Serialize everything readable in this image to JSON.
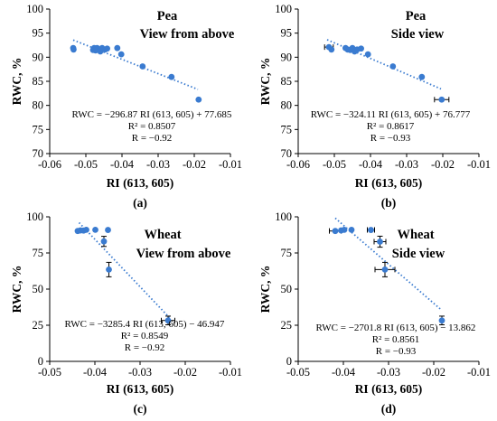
{
  "chart_data": [
    {
      "type": "scatter",
      "panel_label": "(a)",
      "title": [
        "Pea",
        "View from above"
      ],
      "xlabel": "RI (613, 605)",
      "ylabel": "RWC, %",
      "xlim": [
        -0.06,
        -0.01
      ],
      "ylim": [
        70,
        100
      ],
      "xticks": [
        -0.06,
        -0.05,
        -0.04,
        -0.03,
        -0.02,
        -0.01
      ],
      "yticks": [
        70,
        75,
        80,
        85,
        90,
        95,
        100
      ],
      "xtick_labels": [
        "-0.06",
        "-0.05",
        "-0.04",
        "-0.03",
        "-0.02",
        "-0.01"
      ],
      "ytick_labels": [
        "70",
        "75",
        "80",
        "85",
        "90",
        "95",
        "100"
      ],
      "grid": false,
      "points": [
        {
          "x": -0.0535,
          "y": 91.9
        },
        {
          "x": -0.0534,
          "y": 91.6
        },
        {
          "x": -0.048,
          "y": 91.5
        },
        {
          "x": -0.0477,
          "y": 91.9
        },
        {
          "x": -0.0473,
          "y": 91.4
        },
        {
          "x": -0.0469,
          "y": 91.9
        },
        {
          "x": -0.046,
          "y": 91.2
        },
        {
          "x": -0.0455,
          "y": 91.9
        },
        {
          "x": -0.0447,
          "y": 91.6
        },
        {
          "x": -0.0441,
          "y": 91.8
        },
        {
          "x": -0.0413,
          "y": 91.9
        },
        {
          "x": -0.0402,
          "y": 90.6
        },
        {
          "x": -0.0343,
          "y": 88.1
        },
        {
          "x": -0.0263,
          "y": 85.9
        },
        {
          "x": -0.0188,
          "y": 81.2
        }
      ],
      "trendline": {
        "x": [
          -0.0535,
          -0.019
        ]
      },
      "equation": [
        "RWC = −296.87 RI (613, 605) + 77.685",
        "R² = 0.8507",
        "R = −0.92"
      ]
    },
    {
      "type": "scatter",
      "panel_label": "(b)",
      "title": [
        "Pea",
        "Side view"
      ],
      "xlabel": "RI (613, 605)",
      "ylabel": "RWC, %",
      "xlim": [
        -0.06,
        -0.01
      ],
      "ylim": [
        70,
        100
      ],
      "xticks": [
        -0.06,
        -0.05,
        -0.04,
        -0.03,
        -0.02,
        -0.01
      ],
      "yticks": [
        70,
        75,
        80,
        85,
        90,
        95,
        100
      ],
      "xtick_labels": [
        "-0.06",
        "-0.05",
        "-0.04",
        "-0.03",
        "-0.02",
        "-0.01"
      ],
      "ytick_labels": [
        "70",
        "75",
        "80",
        "85",
        "90",
        "95",
        "100"
      ],
      "grid": false,
      "points": [
        {
          "x": -0.0515,
          "y": 92.1,
          "xerr": 0.0012
        },
        {
          "x": -0.0508,
          "y": 91.6
        },
        {
          "x": -0.0469,
          "y": 91.9
        },
        {
          "x": -0.0463,
          "y": 91.6
        },
        {
          "x": -0.0456,
          "y": 91.5
        },
        {
          "x": -0.045,
          "y": 91.9
        },
        {
          "x": -0.0444,
          "y": 91.2
        },
        {
          "x": -0.0437,
          "y": 91.6
        },
        {
          "x": -0.0426,
          "y": 91.8
        },
        {
          "x": -0.0407,
          "y": 90.6
        },
        {
          "x": -0.0338,
          "y": 88.1
        },
        {
          "x": -0.0258,
          "y": 85.9
        },
        {
          "x": -0.0203,
          "y": 81.2,
          "xerr": 0.002
        }
      ],
      "trendline": {
        "x": [
          -0.052,
          -0.0205
        ]
      },
      "equation": [
        "RWC = −324.11 RI (613, 605) + 76.777",
        "R² = 0.8617",
        "R = −0.93"
      ]
    },
    {
      "type": "scatter",
      "panel_label": "(c)",
      "title": [
        "Wheat",
        "View from above"
      ],
      "xlabel": "RI (613, 605)",
      "ylabel": "RWC, %",
      "xlim": [
        -0.05,
        -0.01
      ],
      "ylim": [
        0,
        100
      ],
      "xticks": [
        -0.05,
        -0.04,
        -0.03,
        -0.02,
        -0.01
      ],
      "yticks": [
        0,
        25,
        50,
        75,
        100
      ],
      "xtick_labels": [
        "-0.05",
        "-0.04",
        "-0.03",
        "-0.02",
        "-0.01"
      ],
      "ytick_labels": [
        "0",
        "25",
        "50",
        "75",
        "100"
      ],
      "grid": false,
      "points": [
        {
          "x": -0.0438,
          "y": 90.2
        },
        {
          "x": -0.0432,
          "y": 90.6
        },
        {
          "x": -0.0425,
          "y": 90.5
        },
        {
          "x": -0.0419,
          "y": 91.0
        },
        {
          "x": -0.0399,
          "y": 91.0
        },
        {
          "x": -0.038,
          "y": 83.0,
          "yerr": 3.5
        },
        {
          "x": -0.0371,
          "y": 90.9
        },
        {
          "x": -0.0369,
          "y": 63.5,
          "yerr": 5.0
        },
        {
          "x": -0.0238,
          "y": 28.3,
          "xerr": 0.0015,
          "yerr": 3.0
        }
      ],
      "trendline": {
        "x": [
          -0.0435,
          -0.0235
        ]
      },
      "equation": [
        "RWC = −3285.4 RI (613, 605) − 46.947",
        "R² = 0.8549",
        "R = −0.92"
      ]
    },
    {
      "type": "scatter",
      "panel_label": "(d)",
      "title": [
        "Wheat",
        "Side view"
      ],
      "xlabel": "RI (613, 605)",
      "ylabel": "RWC, %",
      "xlim": [
        -0.05,
        -0.01
      ],
      "ylim": [
        0,
        100
      ],
      "xticks": [
        -0.05,
        -0.04,
        -0.03,
        -0.02,
        -0.01
      ],
      "yticks": [
        0,
        25,
        50,
        75,
        100
      ],
      "xtick_labels": [
        "-0.05",
        "-0.04",
        "-0.03",
        "-0.02",
        "-0.01"
      ],
      "ytick_labels": [
        "0",
        "25",
        "50",
        "75",
        "100"
      ],
      "grid": false,
      "points": [
        {
          "x": -0.0418,
          "y": 90.2,
          "xerr": 0.0013
        },
        {
          "x": -0.0405,
          "y": 90.6
        },
        {
          "x": -0.0398,
          "y": 91.0
        },
        {
          "x": -0.0382,
          "y": 91.0
        },
        {
          "x": -0.0339,
          "y": 90.9,
          "xerr": 0.0008
        },
        {
          "x": -0.0319,
          "y": 82.8,
          "xerr": 0.0013,
          "yerr": 3.8
        },
        {
          "x": -0.0308,
          "y": 63.5,
          "xerr": 0.0022,
          "yerr": 5.0
        },
        {
          "x": -0.0182,
          "y": 28.3,
          "yerr": 3.0
        }
      ],
      "trendline": {
        "x": [
          -0.0418,
          -0.0182
        ]
      },
      "equation": [
        "RWC = −2701.8 RI (613, 605) − 13.862",
        "R² = 0.8561",
        "R = −0.93"
      ]
    }
  ],
  "colors": {
    "point": "#3a7bd0",
    "trendline": "#3a7bd0",
    "errorbar": "#000000",
    "axis": "#000000"
  }
}
